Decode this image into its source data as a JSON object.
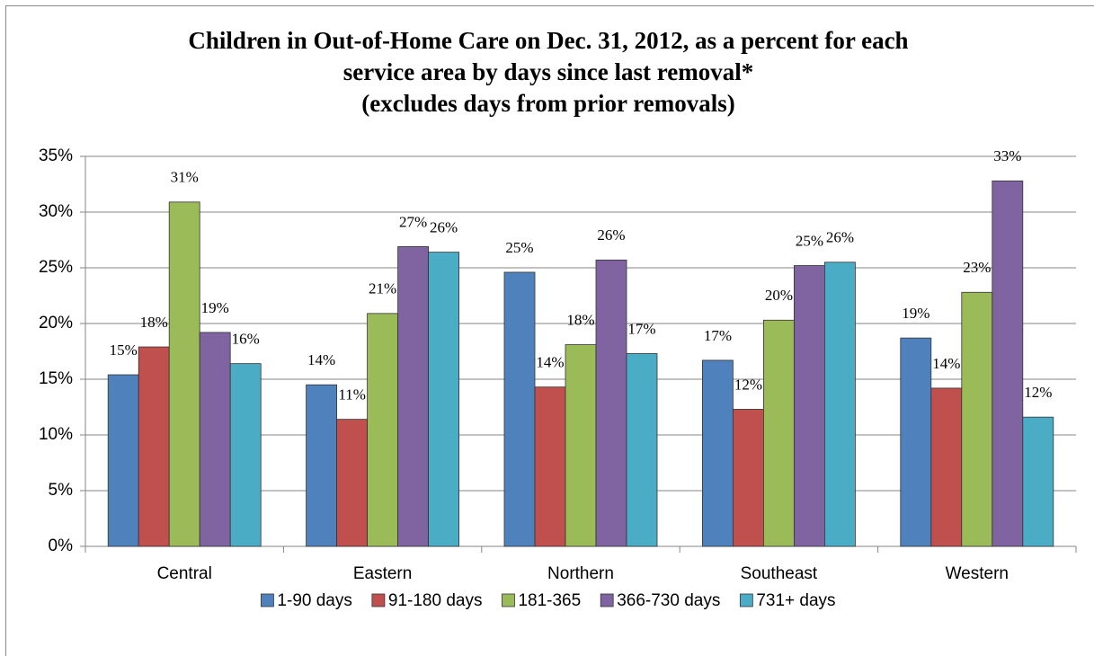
{
  "chart_data": {
    "type": "bar",
    "title": [
      "Children in Out-of-Home Care on Dec. 31, 2012, as a percent for each",
      "service area by days since last removal*",
      "(excludes days from prior removals)"
    ],
    "categories": [
      "Central",
      "Eastern",
      "Northern",
      "Southeast",
      "Western"
    ],
    "series": [
      {
        "name": "1-90 days",
        "color": "#4f81bd",
        "values": [
          15.4,
          14.5,
          24.6,
          16.7,
          18.7
        ],
        "value_labels": [
          "15%",
          "14%",
          "25%",
          "17%",
          "19%"
        ]
      },
      {
        "name": "91-180 days",
        "color": "#c0504d",
        "values": [
          17.9,
          11.4,
          14.3,
          12.3,
          14.2
        ],
        "value_labels": [
          "18%",
          "11%",
          "14%",
          "12%",
          "14%"
        ]
      },
      {
        "name": "181-365",
        "color": "#9bbb59",
        "values": [
          30.9,
          20.9,
          18.1,
          20.3,
          22.8
        ],
        "value_labels": [
          "31%",
          "21%",
          "18%",
          "20%",
          "23%"
        ]
      },
      {
        "name": "366-730 days",
        "color": "#8064a2",
        "values": [
          19.2,
          26.9,
          25.7,
          25.2,
          32.8
        ],
        "value_labels": [
          "19%",
          "27%",
          "26%",
          "25%",
          "33%"
        ]
      },
      {
        "name": "731+ days",
        "color": "#4bacc6",
        "values": [
          16.4,
          26.4,
          17.3,
          25.5,
          11.6
        ],
        "value_labels": [
          "16%",
          "26%",
          "17%",
          "26%",
          "12%"
        ]
      }
    ],
    "ylim": [
      0,
      35
    ],
    "yticks": [
      {
        "value": 0,
        "label": "0%"
      },
      {
        "value": 5,
        "label": "5%"
      },
      {
        "value": 10,
        "label": "10%"
      },
      {
        "value": 15,
        "label": "15%"
      },
      {
        "value": 20,
        "label": "20%"
      },
      {
        "value": 25,
        "label": "25%"
      },
      {
        "value": 30,
        "label": "30%"
      },
      {
        "value": 35,
        "label": "35%"
      }
    ],
    "grid": true,
    "legend": "bottom"
  }
}
